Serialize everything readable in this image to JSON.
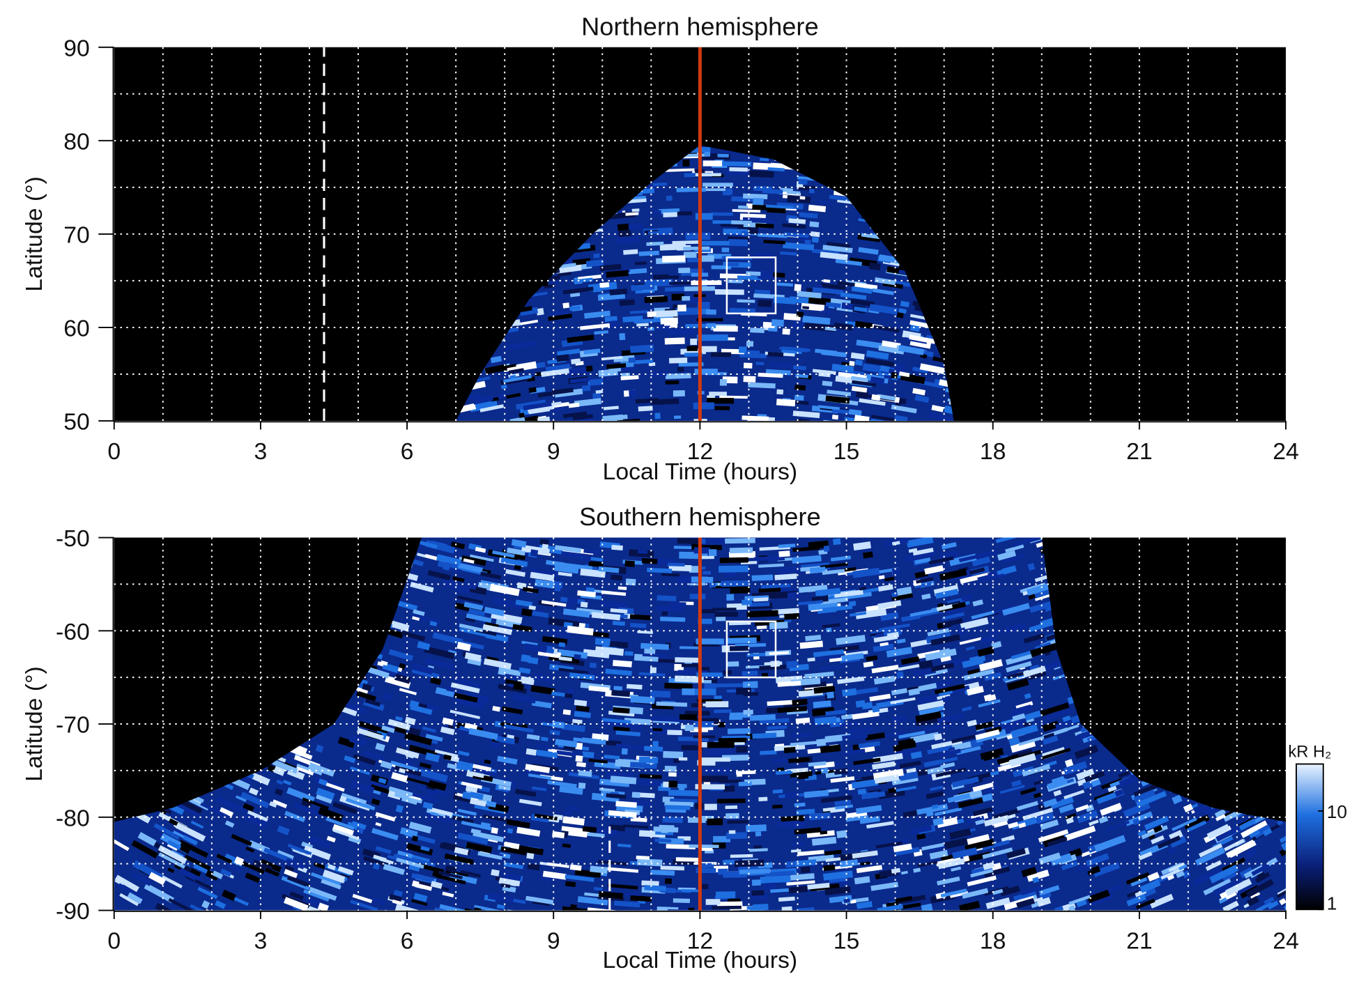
{
  "chart_data": [
    {
      "type": "heatmap",
      "title": "Northern hemisphere",
      "xlabel": "Local Time (hours)",
      "ylabel": "Latitude (°)",
      "xlim": [
        0,
        24
      ],
      "xticks": [
        0,
        3,
        6,
        9,
        12,
        15,
        18,
        21,
        24
      ],
      "ylim": [
        50,
        90
      ],
      "yticks": [
        50,
        60,
        70,
        80,
        90
      ],
      "grid": true,
      "xgrid": [
        1,
        2,
        3,
        4,
        5,
        6,
        7,
        8,
        9,
        10,
        11,
        12,
        13,
        14,
        15,
        16,
        17,
        18,
        19,
        20,
        21,
        22,
        23
      ],
      "ygrid": [
        55,
        60,
        65,
        70,
        75,
        80,
        85
      ],
      "noon_line": {
        "x": 12,
        "color": "#d03a10"
      },
      "dashed_line": {
        "x": 4.3,
        "y": [
          50,
          90
        ],
        "color": "#ffffff"
      },
      "box": {
        "x": [
          12.55,
          13.55
        ],
        "y": [
          61.5,
          67.5
        ],
        "color": "#ffffff"
      }
    },
    {
      "type": "heatmap",
      "title": "Southern hemisphere",
      "xlabel": "Local Time (hours)",
      "ylabel": "Latitude (°)",
      "xlim": [
        0,
        24
      ],
      "xticks": [
        0,
        3,
        6,
        9,
        12,
        15,
        18,
        21,
        24
      ],
      "ylim": [
        -90,
        -50
      ],
      "yticks": [
        -90,
        -80,
        -70,
        -60,
        -50
      ],
      "grid": true,
      "xgrid": [
        1,
        2,
        3,
        4,
        5,
        6,
        7,
        8,
        9,
        10,
        11,
        12,
        13,
        14,
        15,
        16,
        17,
        18,
        19,
        20,
        21,
        22,
        23
      ],
      "ygrid": [
        -85,
        -80,
        -75,
        -70,
        -65,
        -60,
        -55
      ],
      "noon_line": {
        "x": 12,
        "color": "#d03a10"
      },
      "dashed_line": {
        "x": 10.15,
        "y": [
          -90,
          -81
        ],
        "color": "#ffffff"
      },
      "box": {
        "x": [
          12.55,
          13.55
        ],
        "y": [
          -65,
          -59
        ],
        "color": "#ffffff"
      },
      "colorbar": {
        "label": "kR H₂",
        "scale": "log",
        "lim": [
          1,
          30
        ],
        "ticks": [
          1,
          10
        ]
      }
    }
  ]
}
